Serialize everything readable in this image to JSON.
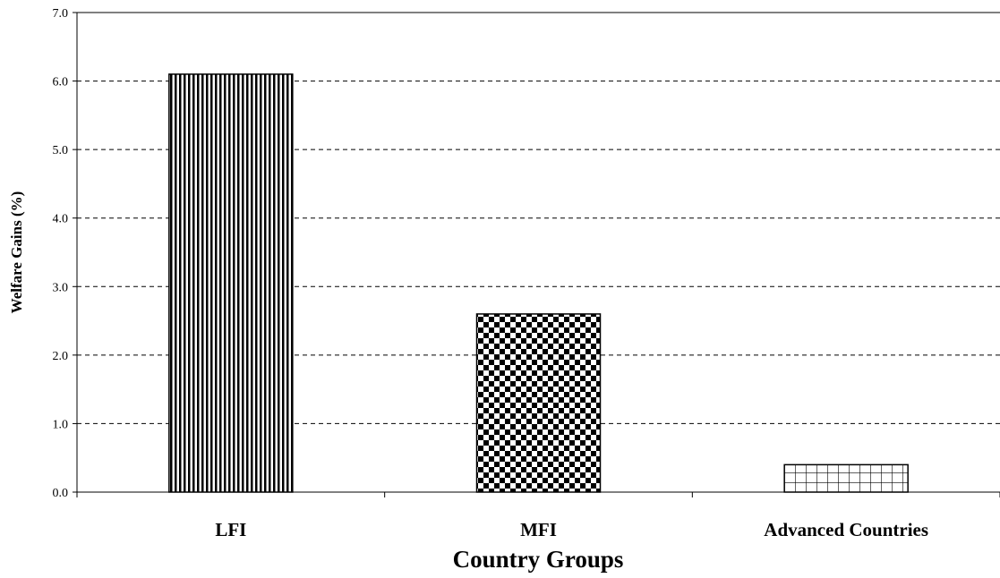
{
  "chart_data": {
    "type": "bar",
    "categories": [
      "LFI",
      "MFI",
      "Advanced Countries"
    ],
    "values": [
      6.1,
      2.6,
      0.4
    ],
    "patterns": [
      "vertical-stripes",
      "checkerboard",
      "grid"
    ],
    "title": "",
    "xlabel": "Country Groups",
    "ylabel": "Welfare Gains (%)",
    "ylim": [
      0,
      7
    ],
    "yticks": [
      "0.0",
      "1.0",
      "2.0",
      "3.0",
      "4.0",
      "5.0",
      "6.0",
      "7.0"
    ],
    "grid": true,
    "grid_style": "dashed",
    "legend": "none",
    "colors": {
      "bar_stroke": "#000000",
      "bar_fill": "#ffffff",
      "grid": "#000000"
    }
  }
}
